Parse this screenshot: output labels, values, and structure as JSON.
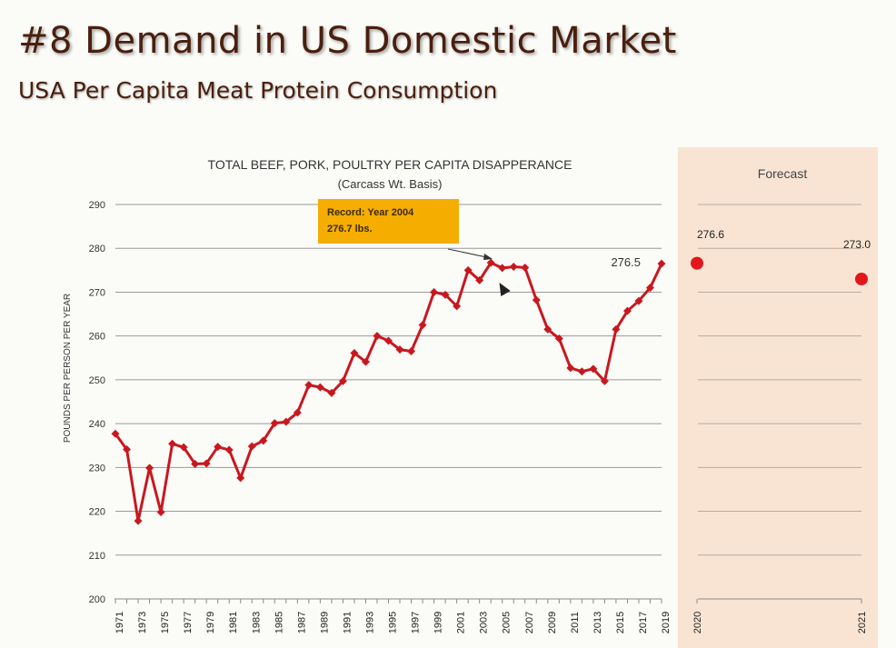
{
  "slide": {
    "title": "#8 Demand in US Domestic Market",
    "subtitle": "USA Per Capita Meat Protein Consumption"
  },
  "chart_data": [
    {
      "type": "line",
      "title": "TOTAL BEEF, PORK, POULTRY PER CAPITA DISAPPERANCE",
      "subtitle": "(Carcass Wt. Basis)",
      "ylabel": "POUNDS PER PERSON PER YEAR",
      "xlabel": "",
      "ylim": [
        200,
        290
      ],
      "yticks": [
        200,
        210,
        220,
        230,
        240,
        250,
        260,
        270,
        280,
        290
      ],
      "xtick_labels": [
        "1971",
        "1973",
        "1975",
        "1977",
        "1979",
        "1981",
        "1983",
        "1985",
        "1987",
        "1989",
        "1991",
        "1993",
        "1995",
        "1997",
        "1999",
        "2001",
        "2003",
        "2005",
        "2007",
        "2009",
        "2011",
        "2013",
        "2015",
        "2017",
        "2019"
      ],
      "grid": true,
      "color": "#c8181f",
      "x": [
        1971,
        1972,
        1973,
        1974,
        1975,
        1976,
        1977,
        1978,
        1979,
        1980,
        1981,
        1982,
        1983,
        1984,
        1985,
        1986,
        1987,
        1988,
        1989,
        1990,
        1991,
        1992,
        1993,
        1994,
        1995,
        1996,
        1997,
        1998,
        1999,
        2000,
        2001,
        2002,
        2003,
        2004,
        2005,
        2006,
        2007,
        2008,
        2009,
        2010,
        2011,
        2012,
        2013,
        2014,
        2015,
        2016,
        2017,
        2018,
        2019
      ],
      "values": [
        237.7,
        234.1,
        217.8,
        229.9,
        219.8,
        235.4,
        234.6,
        230.8,
        230.9,
        234.7,
        234.0,
        227.6,
        234.8,
        236.1,
        240.1,
        240.4,
        242.5,
        248.8,
        248.3,
        247.0,
        249.7,
        256.1,
        254.1,
        260.0,
        258.9,
        256.9,
        256.5,
        262.5,
        270.0,
        269.4,
        266.8,
        275.0,
        272.7,
        276.7,
        275.5,
        275.8,
        275.6,
        268.2,
        261.5,
        259.4,
        252.7,
        251.9,
        252.5,
        249.7,
        261.5,
        265.7,
        268.0,
        271.0,
        276.5
      ],
      "annotations": [
        {
          "text_line1": "Record: Year 2004",
          "text_line2": "276.7 lbs.",
          "background": "#f5ad00"
        },
        {
          "text": "276.5"
        }
      ]
    },
    {
      "type": "scatter",
      "title": "Forecast",
      "background": "#f9e4d3",
      "color": "#e3161b",
      "categories": [
        "2020",
        "2021"
      ],
      "values": [
        276.6,
        273.0
      ],
      "value_labels": [
        "276.6",
        "273.0"
      ]
    }
  ]
}
